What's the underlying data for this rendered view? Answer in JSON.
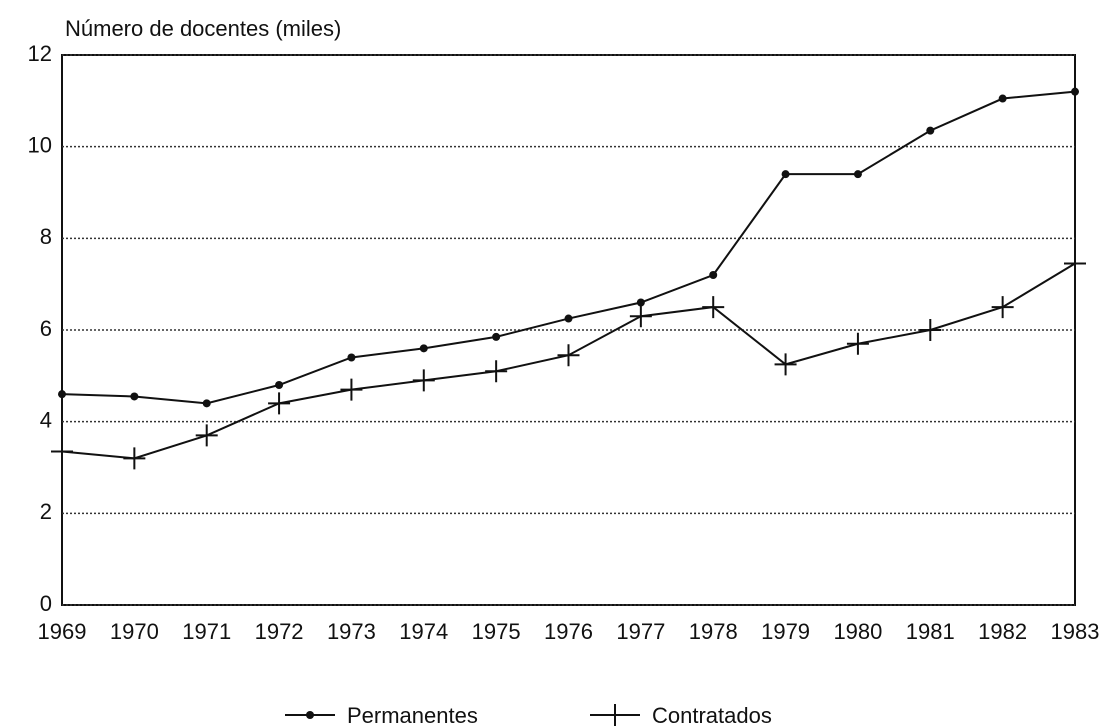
{
  "chart_data": {
    "type": "line",
    "title": "Número de docentes (miles)",
    "categories": [
      "1969",
      "1970",
      "1971",
      "1972",
      "1973",
      "1974",
      "1975",
      "1976",
      "1977",
      "1978",
      "1979",
      "1980",
      "1981",
      "1982",
      "1983"
    ],
    "series": [
      {
        "name": "Permanentes",
        "color": "#111111",
        "marker": "circle",
        "values": [
          4.6,
          4.55,
          4.4,
          4.8,
          5.4,
          5.6,
          5.85,
          6.25,
          6.6,
          7.2,
          9.4,
          9.4,
          10.35,
          11.05,
          11.2
        ]
      },
      {
        "name": "Contratados",
        "color": "#111111",
        "marker": "plus",
        "values": [
          3.35,
          3.2,
          3.7,
          4.4,
          4.7,
          4.9,
          5.1,
          5.45,
          6.3,
          6.5,
          5.25,
          5.7,
          6.0,
          6.5,
          7.45
        ]
      }
    ],
    "ylim": [
      0,
      12
    ],
    "yticks": [
      0,
      2,
      4,
      6,
      8,
      10,
      12
    ],
    "grid": true,
    "legend": "bottom"
  }
}
